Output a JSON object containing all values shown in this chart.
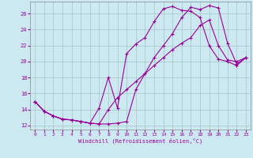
{
  "xlabel": "Windchill (Refroidissement éolien,°C)",
  "background_color": "#cce8f0",
  "grid_color": "#aaccc8",
  "line_color": "#990099",
  "xlim": [
    -0.5,
    23.5
  ],
  "ylim": [
    11.5,
    27.5
  ],
  "yticks": [
    12,
    14,
    16,
    18,
    20,
    22,
    24,
    26
  ],
  "xticks": [
    0,
    1,
    2,
    3,
    4,
    5,
    6,
    7,
    8,
    9,
    10,
    11,
    12,
    13,
    14,
    15,
    16,
    17,
    18,
    19,
    20,
    21,
    22,
    23
  ],
  "series": [
    {
      "x": [
        0,
        1,
        2,
        3,
        4,
        5,
        6,
        7,
        8,
        9,
        10,
        11,
        12,
        13,
        14,
        15,
        16,
        17,
        18,
        19,
        20,
        21,
        22,
        23
      ],
      "y": [
        15.0,
        13.8,
        13.2,
        12.8,
        12.7,
        12.5,
        12.3,
        12.2,
        12.2,
        12.3,
        12.5,
        16.5,
        18.5,
        20.5,
        22.0,
        23.5,
        25.5,
        26.8,
        26.5,
        27.0,
        26.7,
        22.3,
        19.7,
        20.5
      ]
    },
    {
      "x": [
        0,
        1,
        2,
        3,
        4,
        5,
        6,
        7,
        8,
        9,
        10,
        11,
        12,
        13,
        14,
        15,
        16,
        17,
        18,
        19,
        20,
        21,
        22,
        23
      ],
      "y": [
        15.0,
        13.8,
        13.2,
        12.8,
        12.7,
        12.5,
        12.3,
        14.2,
        18.0,
        14.2,
        21.0,
        22.2,
        23.0,
        25.0,
        26.6,
        26.9,
        26.4,
        26.3,
        25.5,
        22.0,
        20.3,
        20.0,
        19.5,
        20.5
      ]
    },
    {
      "x": [
        0,
        1,
        2,
        3,
        4,
        5,
        6,
        7,
        8,
        9,
        10,
        11,
        12,
        13,
        14,
        15,
        16,
        17,
        18,
        19,
        20,
        21,
        22,
        23
      ],
      "y": [
        15.0,
        13.8,
        13.2,
        12.8,
        12.7,
        12.5,
        12.3,
        12.2,
        14.0,
        15.5,
        16.5,
        17.5,
        18.5,
        19.5,
        20.5,
        21.5,
        22.3,
        23.0,
        24.5,
        25.2,
        22.0,
        20.2,
        20.0,
        20.5
      ]
    }
  ]
}
